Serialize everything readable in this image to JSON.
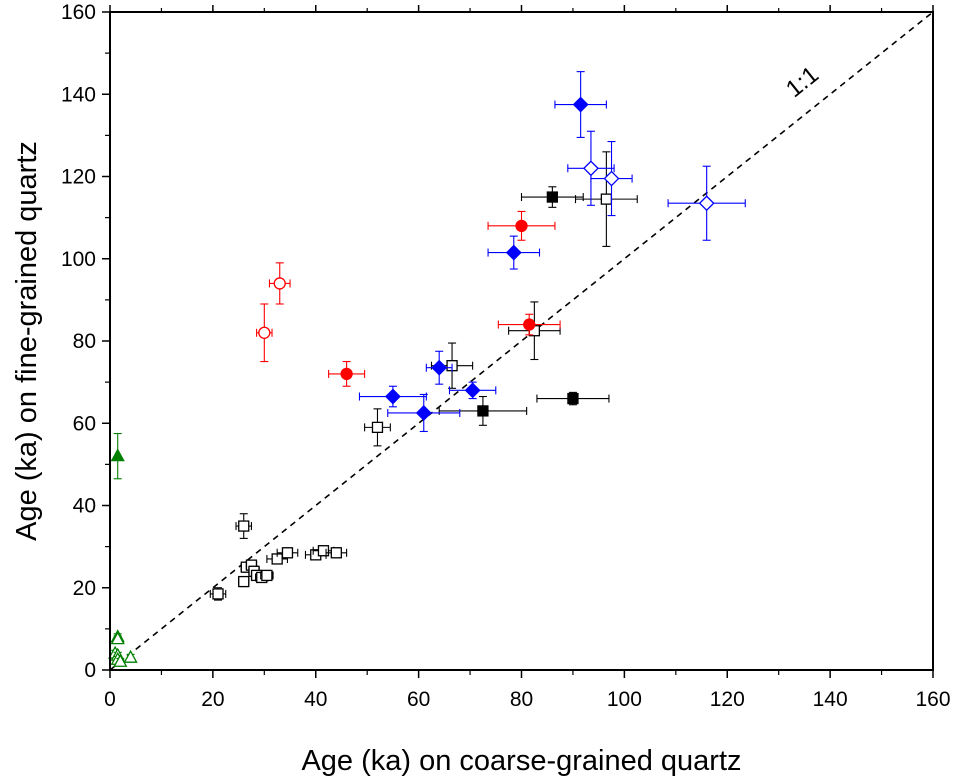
{
  "chart_data": {
    "type": "scatter",
    "xlabel": "Age (ka) on coarse-grained quartz",
    "ylabel": "Age (ka) on fine-grained quartz",
    "xlim": [
      0,
      160
    ],
    "ylim": [
      0,
      160
    ],
    "xticks": [
      0,
      20,
      40,
      60,
      80,
      100,
      120,
      140,
      160
    ],
    "yticks": [
      0,
      20,
      40,
      60,
      80,
      100,
      120,
      140,
      160
    ],
    "grid": false,
    "reference_line": {
      "label": "1:1",
      "style": "dashed",
      "slope": 1
    },
    "series": [
      {
        "marker": "square",
        "filled": false,
        "color": "#000000",
        "points": [
          {
            "x": 26,
            "y": 35,
            "xerr": 1.5,
            "yerr": 3
          },
          {
            "x": 21,
            "y": 18.5,
            "xerr": 1.5,
            "yerr": 1.5
          },
          {
            "x": 26,
            "y": 21.5,
            "xerr": 1,
            "yerr": 1.2
          },
          {
            "x": 26.5,
            "y": 25,
            "xerr": 1,
            "yerr": 1.2
          },
          {
            "x": 27.5,
            "y": 25.5,
            "xerr": 1,
            "yerr": 1.2
          },
          {
            "x": 28,
            "y": 24,
            "xerr": 1,
            "yerr": 1.2
          },
          {
            "x": 28.5,
            "y": 23,
            "xerr": 1,
            "yerr": 1.2
          },
          {
            "x": 29.5,
            "y": 22.5,
            "xerr": 1.2,
            "yerr": 1.2
          },
          {
            "x": 30.5,
            "y": 23,
            "xerr": 1.2,
            "yerr": 1.2
          },
          {
            "x": 32.5,
            "y": 27,
            "xerr": 2,
            "yerr": 1.2
          },
          {
            "x": 34.5,
            "y": 28.5,
            "xerr": 2,
            "yerr": 1.2
          },
          {
            "x": 40,
            "y": 28,
            "xerr": 2,
            "yerr": 1.2
          },
          {
            "x": 41.5,
            "y": 29,
            "xerr": 2,
            "yerr": 1.2
          },
          {
            "x": 44,
            "y": 28.5,
            "xerr": 2,
            "yerr": 1.2
          },
          {
            "x": 52,
            "y": 59,
            "xerr": 2.5,
            "yerr": 4.5
          },
          {
            "x": 66.5,
            "y": 74,
            "xerr": 4,
            "yerr": 5.5
          },
          {
            "x": 82.5,
            "y": 82.5,
            "xerr": 5,
            "yerr": 7
          },
          {
            "x": 96.5,
            "y": 114.5,
            "xerr": 6,
            "yerr": 11.5
          }
        ]
      },
      {
        "marker": "square",
        "filled": true,
        "color": "#000000",
        "points": [
          {
            "x": 72.5,
            "y": 63,
            "xerr": 8.5,
            "yerr": 3.5
          },
          {
            "x": 90,
            "y": 66,
            "xerr": 7,
            "yerr": 1.5
          },
          {
            "x": 86,
            "y": 115,
            "xerr": 6,
            "yerr": 2.5
          }
        ]
      },
      {
        "marker": "diamond",
        "filled": true,
        "color": "#0000ff",
        "points": [
          {
            "x": 55,
            "y": 66.5,
            "xerr": 6.5,
            "yerr": 2.5
          },
          {
            "x": 61,
            "y": 62.5,
            "xerr": 7,
            "yerr": 4.5
          },
          {
            "x": 64,
            "y": 73.5,
            "xerr": 2.5,
            "yerr": 4
          },
          {
            "x": 70.5,
            "y": 68,
            "xerr": 4.5,
            "yerr": 2
          },
          {
            "x": 78.5,
            "y": 101.5,
            "xerr": 5,
            "yerr": 4
          },
          {
            "x": 91.5,
            "y": 137.5,
            "xerr": 5,
            "yerr": 8
          }
        ]
      },
      {
        "marker": "diamond",
        "filled": false,
        "color": "#0000ff",
        "points": [
          {
            "x": 93.5,
            "y": 122,
            "xerr": 4.5,
            "yerr": 9
          },
          {
            "x": 97.5,
            "y": 119.5,
            "xerr": 4,
            "yerr": 9
          },
          {
            "x": 116,
            "y": 113.5,
            "xerr": 7.5,
            "yerr": 9
          }
        ]
      },
      {
        "marker": "circle",
        "filled": true,
        "color": "#ff0000",
        "points": [
          {
            "x": 46,
            "y": 72,
            "xerr": 3.5,
            "yerr": 3
          },
          {
            "x": 80,
            "y": 108,
            "xerr": 6.5,
            "yerr": 3.5
          },
          {
            "x": 81.5,
            "y": 84,
            "xerr": 6,
            "yerr": 2.5
          }
        ]
      },
      {
        "marker": "circle",
        "filled": false,
        "color": "#ff0000",
        "points": [
          {
            "x": 30,
            "y": 82,
            "xerr": 1.5,
            "yerr": 7
          },
          {
            "x": 33,
            "y": 94,
            "xerr": 2,
            "yerr": 5
          }
        ]
      },
      {
        "marker": "triangle",
        "filled": true,
        "color": "#008000",
        "points": [
          {
            "x": 1.5,
            "y": 52,
            "xerr": 0,
            "yerr": 5.5
          }
        ]
      },
      {
        "marker": "triangle",
        "filled": false,
        "color": "#008000",
        "points": [
          {
            "x": 1.5,
            "y": 8,
            "xerr": 0,
            "yerr": 0.8
          },
          {
            "x": 1.5,
            "y": 7.5,
            "xerr": 0,
            "yerr": 0.8
          },
          {
            "x": 1,
            "y": 4,
            "xerr": 0,
            "yerr": 0.8
          },
          {
            "x": 1.5,
            "y": 3.5,
            "xerr": 0,
            "yerr": 0.8
          },
          {
            "x": 1.5,
            "y": 2.5,
            "xerr": 0,
            "yerr": 0.8
          },
          {
            "x": 2,
            "y": 2,
            "xerr": 0,
            "yerr": 0.8
          },
          {
            "x": 4,
            "y": 3,
            "xerr": 0,
            "yerr": 0.8
          }
        ]
      }
    ]
  }
}
